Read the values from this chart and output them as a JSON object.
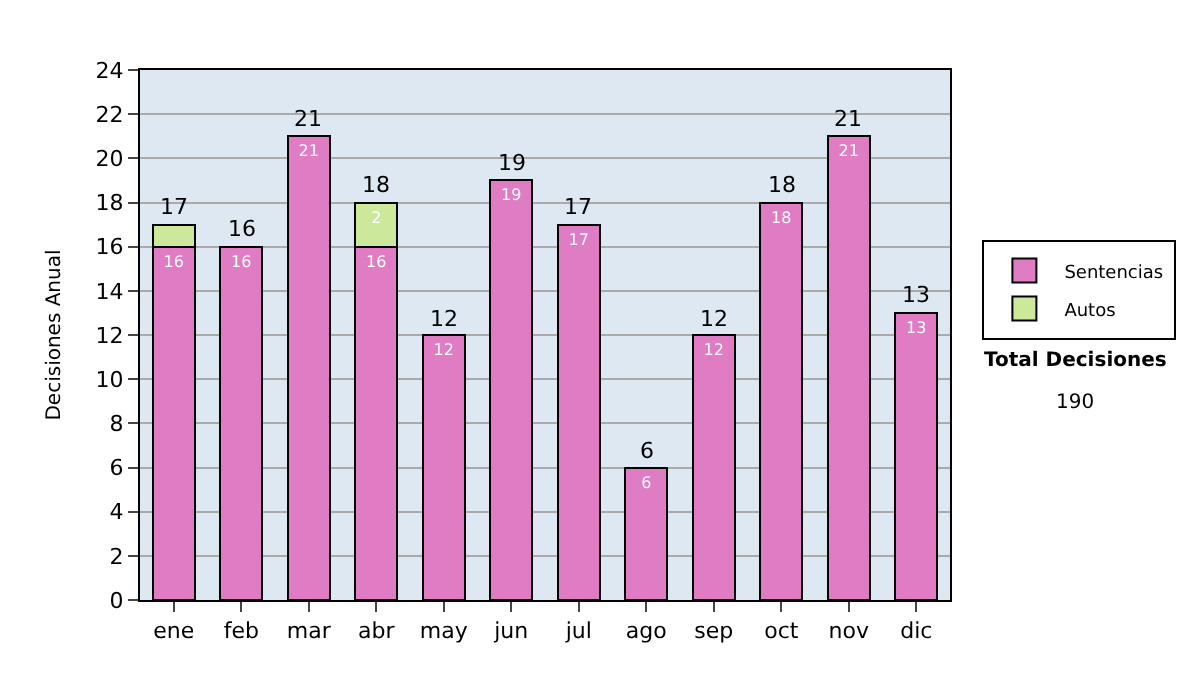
{
  "chart_data": {
    "type": "bar",
    "stacked": true,
    "ylabel": "Decisiones Anual",
    "categories": [
      "ene",
      "feb",
      "mar",
      "abr",
      "may",
      "jun",
      "jul",
      "ago",
      "sep",
      "oct",
      "nov",
      "dic"
    ],
    "series": [
      {
        "name": "Sentencias",
        "color": "#e07cc4",
        "values": [
          16,
          16,
          21,
          16,
          12,
          19,
          17,
          6,
          12,
          18,
          21,
          13
        ],
        "value_labels": [
          "16",
          "16",
          "21",
          "16",
          "12",
          "19",
          "17",
          "6",
          "12",
          "18",
          "21",
          "13"
        ]
      },
      {
        "name": "Autos",
        "color": "#cce89a",
        "values": [
          1,
          null,
          null,
          2,
          null,
          null,
          null,
          null,
          null,
          null,
          null,
          null
        ],
        "value_labels": [
          null,
          null,
          null,
          "2",
          null,
          null,
          null,
          null,
          null,
          null,
          null,
          null
        ]
      }
    ],
    "totals": [
      "17",
      "16",
      "21",
      "18",
      "12",
      "19",
      "17",
      "6",
      "12",
      "18",
      "21",
      "13"
    ],
    "ylim": [
      0,
      24
    ],
    "yticks": [
      0,
      2,
      4,
      6,
      8,
      10,
      12,
      14,
      16,
      18,
      20,
      22,
      24
    ],
    "grid": "y",
    "legend": "right",
    "annotations": [
      "Total Decisiones",
      "190"
    ]
  }
}
